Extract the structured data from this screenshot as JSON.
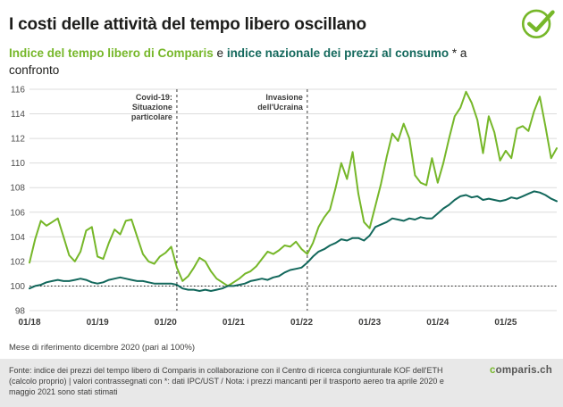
{
  "header": {
    "title": "I costi delle attività del tempo libero oscillano",
    "subtitle_green": "Indice del tempo libero di Comparis",
    "subtitle_and": " e ",
    "subtitle_teal": "indice nazionale dei prezzi al consumo",
    "subtitle_rest": " * a confronto"
  },
  "icons": {
    "logo": "check-circle-icon"
  },
  "colors": {
    "brand_green": "#76b729",
    "dark_teal": "#13685c",
    "footer_bg": "#e8e8e8",
    "grid": "#dcdcdc",
    "text_dark": "#1d1d1b"
  },
  "chart_data": {
    "type": "line",
    "title": "I costi delle attività del tempo libero oscillano",
    "xlabel": "",
    "ylabel": "",
    "months_start": "01/2018",
    "months_end": "10/2025",
    "ylim": [
      98,
      116
    ],
    "y_ticks": [
      98,
      100,
      102,
      104,
      106,
      108,
      110,
      112,
      114,
      116
    ],
    "reference_line": 100,
    "grid": true,
    "legend_position": "none",
    "x_ticks": [
      {
        "label": "01/18",
        "month_index": 0
      },
      {
        "label": "01/19",
        "month_index": 12
      },
      {
        "label": "01/20",
        "month_index": 24
      },
      {
        "label": "01/21",
        "month_index": 36
      },
      {
        "label": "01/22",
        "month_index": 48
      },
      {
        "label": "01/23",
        "month_index": 60
      },
      {
        "label": "01/24",
        "month_index": 72
      },
      {
        "label": "01/25",
        "month_index": 84
      }
    ],
    "annotations": [
      {
        "lines": [
          "Covid-19:",
          "Situazione",
          "particolare"
        ],
        "month_index": 26
      },
      {
        "lines": [
          "Invasione",
          "dell'Ucraina"
        ],
        "month_index": 49
      }
    ],
    "series": [
      {
        "id": "comparis-leisure-index",
        "name": "Indice del tempo libero di Comparis",
        "color": "#76b729",
        "values": [
          101.9,
          103.8,
          105.3,
          104.9,
          105.2,
          105.5,
          104.0,
          102.5,
          102.0,
          102.8,
          104.5,
          104.8,
          102.4,
          102.2,
          103.5,
          104.6,
          104.2,
          105.3,
          105.4,
          104.0,
          102.6,
          102.0,
          101.8,
          102.4,
          102.7,
          103.2,
          101.5,
          100.4,
          100.8,
          101.5,
          102.3,
          102.0,
          101.2,
          100.6,
          100.3,
          100.0,
          100.3,
          100.6,
          101.0,
          101.2,
          101.6,
          102.2,
          102.8,
          102.6,
          102.9,
          103.3,
          103.2,
          103.6,
          103.0,
          102.6,
          103.5,
          104.8,
          105.6,
          106.2,
          108.0,
          110.0,
          108.7,
          110.9,
          107.5,
          105.2,
          104.7,
          106.5,
          108.3,
          110.5,
          112.4,
          111.8,
          113.2,
          112.0,
          109.0,
          108.4,
          108.2,
          110.4,
          108.4,
          110.0,
          112.0,
          113.8,
          114.5,
          115.8,
          114.9,
          113.5,
          110.8,
          113.8,
          112.5,
          110.2,
          111.0,
          110.4,
          112.8,
          113.0,
          112.6,
          114.2,
          115.4,
          113.0,
          110.4,
          111.2
        ]
      },
      {
        "id": "national-cpi",
        "name": "Indice nazionale dei prezzi al consumo",
        "color": "#13685c",
        "values": [
          99.8,
          100.0,
          100.1,
          100.3,
          100.4,
          100.5,
          100.4,
          100.4,
          100.5,
          100.6,
          100.5,
          100.3,
          100.2,
          100.3,
          100.5,
          100.6,
          100.7,
          100.6,
          100.5,
          100.4,
          100.4,
          100.3,
          100.2,
          100.2,
          100.2,
          100.2,
          100.1,
          99.8,
          99.7,
          99.7,
          99.6,
          99.7,
          99.6,
          99.7,
          99.8,
          100.0,
          100.0,
          100.1,
          100.2,
          100.4,
          100.5,
          100.6,
          100.5,
          100.7,
          100.8,
          101.1,
          101.3,
          101.4,
          101.5,
          101.9,
          102.4,
          102.8,
          103.0,
          103.3,
          103.5,
          103.8,
          103.7,
          103.9,
          103.9,
          103.7,
          104.1,
          104.8,
          105.0,
          105.2,
          105.5,
          105.4,
          105.3,
          105.5,
          105.4,
          105.6,
          105.5,
          105.5,
          105.9,
          106.3,
          106.6,
          107.0,
          107.3,
          107.4,
          107.2,
          107.3,
          107.0,
          107.1,
          107.0,
          106.9,
          107.0,
          107.2,
          107.1,
          107.3,
          107.5,
          107.7,
          107.6,
          107.4,
          107.1,
          106.9
        ]
      }
    ]
  },
  "note": "Mese di riferimento dicembre 2020 (pari al 100%)",
  "footer": {
    "source": "Fonte: indice dei prezzi del tempo libero di Comparis in collaborazione con il Centro di ricerca congiunturale KOF dell'ETH (calcolo proprio) | valori contrassegnati con *: dati IPC/UST / Nota: i prezzi mancanti per il trasporto aereo tra aprile 2020 e maggio 2021 sono stati stimati",
    "brand_c": "c",
    "brand_rest": "omparis.ch"
  }
}
